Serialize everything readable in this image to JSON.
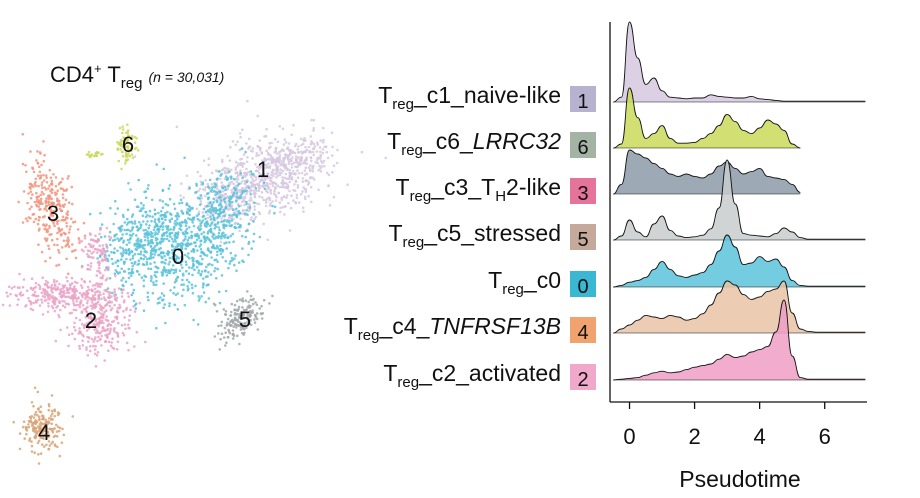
{
  "chart_data": [
    {
      "type": "scatter",
      "subtype": "umap-embedding",
      "title": {
        "main": "CD4",
        "sup": "+",
        "tail": " T",
        "sub": "reg",
        "n_text": "(n = 30,031)"
      },
      "clusters": [
        {
          "label": "0",
          "color": "#5bc3d9"
        },
        {
          "label": "1",
          "color": "#d6c8e0"
        },
        {
          "label": "2",
          "color": "#eaa5c7"
        },
        {
          "label": "3",
          "color": "#f2957f"
        },
        {
          "label": "4",
          "color": "#d8a477"
        },
        {
          "label": "5",
          "color": "#a3a8aa"
        },
        {
          "label": "6",
          "color": "#c9d95a"
        }
      ]
    },
    {
      "type": "area",
      "subtype": "ridgeline-density",
      "xlabel": "Pseudotime",
      "xticks": [
        0,
        2,
        4,
        6
      ],
      "xlim": [
        -0.6,
        7.3
      ],
      "grid": false,
      "x": [
        -0.5,
        -0.25,
        0,
        0.25,
        0.5,
        0.75,
        1,
        1.25,
        1.5,
        1.75,
        2,
        2.25,
        2.5,
        2.75,
        3,
        3.25,
        3.5,
        3.75,
        4,
        4.25,
        4.5,
        4.75,
        5,
        5.25,
        5.5,
        5.75,
        6,
        6.25,
        6.5,
        6.75,
        7,
        7.25
      ],
      "series": [
        {
          "label_main": "T",
          "label_sub": "reg",
          "label_rest": "_c1_naive-like",
          "label_italic": "",
          "badge": "1",
          "color": "#d6c8e0",
          "values": [
            0.0,
            0.06,
            1.0,
            0.55,
            0.22,
            0.3,
            0.14,
            0.06,
            0.05,
            0.04,
            0.05,
            0.05,
            0.09,
            0.07,
            0.06,
            0.05,
            0.05,
            0.07,
            0.04,
            0.03,
            0.02,
            0.01,
            0.01,
            0.01,
            0.01,
            0.01,
            0.01,
            0.01,
            0.01,
            0.01,
            0.01,
            0.01
          ]
        },
        {
          "label_main": "T",
          "label_sub": "reg",
          "label_rest": "_c6_",
          "label_italic": "LRRC32",
          "badge": "6",
          "color": "#c9d95a",
          "values": [
            0.0,
            0.05,
            0.75,
            0.38,
            0.12,
            0.18,
            0.28,
            0.12,
            0.06,
            0.06,
            0.07,
            0.12,
            0.18,
            0.28,
            0.42,
            0.33,
            0.22,
            0.18,
            0.25,
            0.35,
            0.3,
            0.22,
            0.05,
            0.0,
            null,
            null,
            null,
            null,
            null,
            null,
            null,
            null
          ]
        },
        {
          "label_main": "T",
          "label_sub": "reg",
          "label_rest": "_c3_T",
          "label_sub2": "H",
          "label_rest2": "2-like",
          "label_italic": "",
          "badge": "3",
          "color": "#8c9ba8",
          "values": [
            0.0,
            0.12,
            0.55,
            0.5,
            0.45,
            0.38,
            0.32,
            0.25,
            0.22,
            0.25,
            0.22,
            0.2,
            0.25,
            0.35,
            0.4,
            0.32,
            0.25,
            0.28,
            0.32,
            0.22,
            0.2,
            0.18,
            0.12,
            0.02,
            null,
            null,
            null,
            null,
            null,
            null,
            null,
            null
          ]
        },
        {
          "label_main": "T",
          "label_sub": "reg",
          "label_rest": "_c5_stressed",
          "label_italic": "",
          "badge": "5",
          "color": "#c9ccce",
          "values": [
            0.0,
            0.05,
            0.25,
            0.1,
            0.04,
            0.2,
            0.3,
            0.12,
            0.05,
            0.03,
            0.04,
            0.06,
            0.14,
            0.4,
            1.0,
            0.45,
            0.08,
            0.06,
            0.05,
            0.04,
            0.08,
            0.15,
            0.1,
            0.03,
            0.01,
            0.01,
            0.01,
            0.01,
            0.01,
            0.01,
            0.01,
            0.01
          ]
        },
        {
          "label_main": "T",
          "label_sub": "reg",
          "label_rest": "_c0",
          "label_italic": "",
          "badge": "0",
          "color": "#5bc3d9",
          "values": [
            0.0,
            0.02,
            0.06,
            0.08,
            0.12,
            0.22,
            0.32,
            0.22,
            0.14,
            0.12,
            0.15,
            0.18,
            0.28,
            0.45,
            0.65,
            0.5,
            0.28,
            0.3,
            0.38,
            0.32,
            0.35,
            0.25,
            0.08,
            0.02,
            0.01,
            0.01,
            0.01,
            0.01,
            0.01,
            0.01,
            0.01,
            0.01
          ]
        },
        {
          "label_main": "T",
          "label_sub": "reg",
          "label_rest": "_c4_",
          "label_italic": "TNFRSF13B",
          "badge": "4",
          "color": "#e9c3a4",
          "values": [
            0.0,
            0.05,
            0.1,
            0.16,
            0.22,
            0.2,
            0.18,
            0.22,
            0.2,
            0.16,
            0.18,
            0.24,
            0.35,
            0.5,
            0.65,
            0.6,
            0.48,
            0.42,
            0.45,
            0.52,
            0.55,
            0.65,
            0.25,
            0.05,
            0.02,
            0.01,
            0.01,
            0.01,
            0.01,
            0.01,
            0.01,
            0.01
          ]
        },
        {
          "label_main": "T",
          "label_sub": "reg",
          "label_rest": "_c2_activated",
          "label_italic": "",
          "badge": "2",
          "color": "#ee9dc6",
          "values": [
            0.0,
            0.01,
            0.02,
            0.03,
            0.06,
            0.09,
            0.11,
            0.09,
            0.1,
            0.13,
            0.16,
            0.18,
            0.2,
            0.26,
            0.32,
            0.28,
            0.3,
            0.35,
            0.38,
            0.42,
            0.6,
            1.0,
            0.3,
            0.03,
            0.01,
            0.01,
            0.01,
            0.01,
            0.01,
            0.01,
            0.01,
            0.01
          ]
        }
      ],
      "badge_colors": {
        "1": "#b7b2cf",
        "6": "#a3b3a4",
        "3": "#e5739a",
        "5": "#c5aa9c",
        "0": "#3ab7d3",
        "4": "#f0a36e",
        "2": "#f1a9cb"
      }
    }
  ]
}
